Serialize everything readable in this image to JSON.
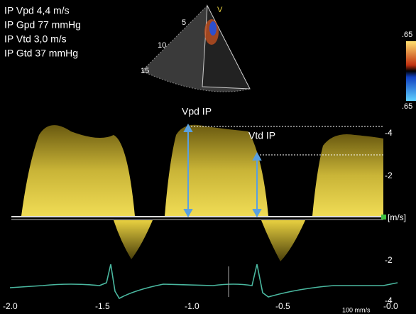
{
  "measurements": [
    "IP Vpd 4,4 m/s",
    "IP Gpd 77 mmHg",
    "IP Vtd 3,0 m/s",
    "IP Gtd 37 mmHg"
  ],
  "sector_labels": {
    "depths": [
      "5",
      "10",
      "15"
    ],
    "mode": "V"
  },
  "color_scale": {
    "top": ".65",
    "bottom": ".65"
  },
  "annotations": [
    "Vpd IP",
    "Vtd IP"
  ],
  "velocity_axis": {
    "labels": [
      "-4",
      "-2",
      "[m/s]",
      "-2",
      "-4"
    ]
  },
  "time_axis": {
    "labels": [
      "-2.0",
      "-1.5",
      "-1.0",
      "-0.5",
      "-0.0"
    ]
  },
  "sweep_speed": "100 mm/s"
}
